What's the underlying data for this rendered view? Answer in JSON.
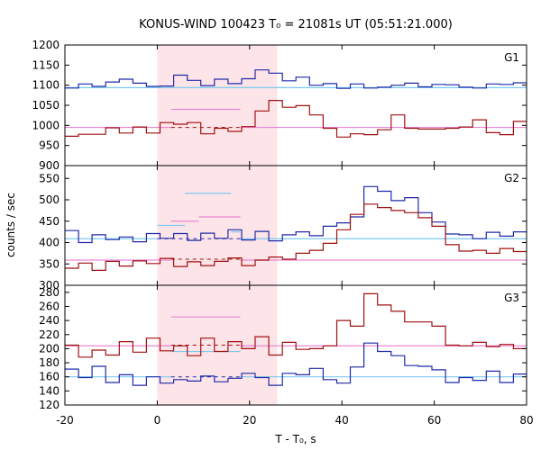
{
  "chart_data": {
    "type": "line",
    "title": "KONUS-WIND 100423 T₀ = 21081s UT (05:51:21.000)",
    "xlabel": "T - T₀, s",
    "ylabel": "counts / sec",
    "xlim": [
      -20,
      80
    ],
    "x_ticks": [
      "-20",
      "0",
      "20",
      "40",
      "60",
      "80"
    ],
    "shaded_interval": [
      0,
      26
    ],
    "colors": {
      "dark_series": "#a01010",
      "blue_series": "#1f2aa8",
      "blue_level": "#7ec8f0",
      "dark_level": "#e887d6",
      "shade": "#fde4e8"
    },
    "panels": [
      {
        "label": "G1",
        "ylim": [
          900,
          1200
        ],
        "y_ticks": [
          900,
          950,
          1000,
          1050,
          1100,
          1150,
          1200
        ],
        "bin_start": -20,
        "bin_width": 2.944,
        "series": [
          {
            "key": "blue",
            "values": [
              1093,
              1103,
              1097,
              1108,
              1115,
              1105,
              1097,
              1098,
              1125,
              1112,
              1099,
              1115,
              1104,
              1116,
              1138,
              1130,
              1111,
              1120,
              1100,
              1104,
              1092,
              1103,
              1093,
              1095,
              1100,
              1105,
              1096,
              1102,
              1101,
              1095,
              1093,
              1103,
              1102,
              1106,
              1101,
              1100,
              1102,
              1100,
              1094,
              1101,
              1095,
              1097,
              1100,
              1093,
              1101,
              1098,
              1107,
              1088,
              1116,
              1087,
              1095,
              1093,
              1122,
              1096,
              1100,
              1097,
              1094,
              1110,
              1100,
              1096,
              1097,
              1093,
              1104,
              1097,
              1101,
              1100,
              1101,
              1137,
              1100,
              1105,
              1096,
              1094,
              1093,
              1097,
              1095,
              1100,
              1111,
              1089,
              1100,
              1125,
              1101,
              1138,
              1098,
              1103,
              1097
            ]
          },
          {
            "key": "dark",
            "values": [
              973,
              978,
              978,
              994,
              981,
              996,
              981,
              1007,
              1003,
              1007,
              979,
              993,
              985,
              997,
              1036,
              1062,
              1045,
              1049,
              1026,
              993,
              971,
              979,
              977,
              989,
              1026,
              993,
              991,
              991,
              993,
              996,
              1014,
              982,
              977,
              1010,
              1016,
              983,
              983,
              994,
              997,
              1003,
              991,
              994,
              983,
              995,
              997,
              1010,
              1005,
              993,
              1008,
              1007,
              976,
              991,
              1003,
              984,
              985,
              1002,
              974,
              981,
              997,
              993,
              989,
              993,
              987,
              994,
              996,
              997,
              997,
              996,
              1001,
              993,
              999,
              983,
              983,
              979,
              973,
              996,
              1001,
              1008,
              993,
              1019,
              1000,
              986,
              999,
              993,
              991
            ]
          }
        ],
        "fit_levels": [
          {
            "key": "blue_level",
            "segments": [
              {
                "x": [
                  -20,
                  80
                ],
                "y": 1094
              }
            ]
          },
          {
            "key": "dark_level",
            "segments": [
              {
                "x": [
                  -20,
                  3
                ],
                "y": 995
              },
              {
                "x": [
                  3,
                  18
                ],
                "y": 1040
              },
              {
                "x": [
                  18,
                  80
                ],
                "y": 995
              }
            ]
          },
          {
            "key": "dark_dashed",
            "segments": [
              {
                "x": [
                  3,
                  18
                ],
                "y": 995
              }
            ]
          }
        ]
      },
      {
        "label": "G2",
        "ylim": [
          300,
          580
        ],
        "y_ticks": [
          300,
          350,
          400,
          450,
          500,
          550
        ],
        "bin_start": -20,
        "bin_width": 2.944,
        "series": [
          {
            "key": "blue",
            "values": [
              428,
              400,
              418,
              407,
              413,
              402,
              421,
              410,
              421,
              405,
              422,
              410,
              430,
              406,
              426,
              404,
              418,
              425,
              416,
              438,
              446,
              460,
              531,
              520,
              498,
              505,
              470,
              448,
              420,
              418,
              409,
              424,
              415,
              425,
              413,
              404,
              411,
              415,
              410,
              401,
              413,
              403,
              412,
              407,
              421,
              409,
              417,
              410,
              410,
              405,
              420,
              408,
              417,
              411,
              412,
              418,
              403,
              407,
              414,
              412,
              407,
              418,
              404,
              410,
              420,
              414,
              413,
              407,
              405,
              409,
              406,
              418,
              411,
              405,
              410,
              414,
              410,
              404,
              416,
              410,
              413,
              410,
              403,
              419,
              410
            ]
          },
          {
            "key": "dark",
            "values": [
              340,
              352,
              335,
              356,
              345,
              357,
              351,
              363,
              344,
              355,
              346,
              356,
              364,
              346,
              359,
              366,
              361,
              375,
              382,
              398,
              430,
              466,
              490,
              482,
              475,
              470,
              458,
              438,
              395,
              380,
              382,
              375,
              386,
              379,
              380,
              368,
              371,
              362,
              374,
              363,
              375,
              368,
              372,
              378,
              359,
              368,
              372,
              362,
              367,
              356,
              363,
              374,
              362,
              368,
              366,
              360,
              371,
              362,
              374,
              370,
              365,
              369,
              362,
              370,
              375,
              366,
              359,
              373,
              368,
              362,
              376,
              366,
              357,
              369,
              370,
              362,
              374,
              360,
              365,
              371,
              356,
              370,
              360,
              362,
              369
            ]
          }
        ],
        "fit_levels": [
          {
            "key": "blue_level",
            "segments": [
              {
                "x": [
                  -20,
                  0
                ],
                "y": 409
              },
              {
                "x": [
                  0,
                  6
                ],
                "y": 440
              },
              {
                "x": [
                  6,
                  16
                ],
                "y": 515
              },
              {
                "x": [
                  16,
                  18
                ],
                "y": 425
              },
              {
                "x": [
                  18,
                  80
                ],
                "y": 409
              }
            ]
          },
          {
            "key": "dark_level",
            "segments": [
              {
                "x": [
                  -20,
                  3
                ],
                "y": 359
              },
              {
                "x": [
                  3,
                  9
                ],
                "y": 450
              },
              {
                "x": [
                  9,
                  18
                ],
                "y": 460
              },
              {
                "x": [
                  18,
                  80
                ],
                "y": 359
              }
            ]
          },
          {
            "key": "blue_dashed",
            "segments": [
              {
                "x": [
                  0,
                  18
                ],
                "y": 409
              }
            ]
          },
          {
            "key": "dark_dashed",
            "segments": [
              {
                "x": [
                  3,
                  18
                ],
                "y": 361
              }
            ]
          }
        ]
      },
      {
        "label": "G3",
        "ylim": [
          120,
          290
        ],
        "y_ticks": [
          120,
          140,
          160,
          180,
          200,
          220,
          240,
          260,
          280
        ],
        "bin_start": -20,
        "bin_width": 2.944,
        "series": [
          {
            "key": "blue",
            "values": [
              171,
              159,
              175,
              152,
              163,
              148,
              160,
              151,
              156,
              154,
              161,
              153,
              158,
              165,
              159,
              148,
              165,
              163,
              172,
              156,
              151,
              174,
              208,
              196,
              190,
              176,
              175,
              170,
              152,
              159,
              155,
              168,
              152,
              164,
              159,
              172,
              160,
              154,
              170,
              162,
              166,
              157,
              175,
              158,
              163,
              154,
              158,
              164,
              162,
              151,
              165,
              152,
              165,
              163,
              147,
              164,
              156,
              151,
              161,
              163,
              159,
              155,
              172,
              158,
              166,
              158,
              155,
              159,
              157,
              166,
              154,
              162,
              158,
              172,
              163,
              155,
              162,
              157,
              164,
              152,
              167,
              158,
              160,
              156,
              165
            ]
          },
          {
            "key": "dark",
            "values": [
              205,
              188,
              198,
              191,
              210,
              195,
              215,
              197,
              204,
              190,
              215,
              196,
              210,
              200,
              217,
              191,
              209,
              199,
              200,
              204,
              240,
              232,
              278,
              262,
              253,
              238,
              238,
              232,
              205,
              204,
              209,
              203,
              206,
              200,
              218,
              202,
              200,
              208,
              200,
              212,
              196,
              205,
              210,
              202,
              217,
              210,
              198,
              214,
              206,
              205,
              192,
              207,
              210,
              196,
              213,
              205,
              196,
              210,
              199,
              214,
              202,
              206,
              208,
              200,
              202,
              215,
              200,
              217,
              210,
              195,
              207,
              203,
              200,
              211,
              199,
              208,
              203,
              215,
              196,
              205,
              209,
              201,
              212,
              199,
              205
            ]
          }
        ],
        "fit_levels": [
          {
            "key": "blue_level",
            "segments": [
              {
                "x": [
                  -20,
                  3
                ],
                "y": 160
              },
              {
                "x": [
                  3,
                  9
                ],
                "y": 196
              },
              {
                "x": [
                  9,
                  18
                ],
                "y": 196
              },
              {
                "x": [
                  18,
                  80
                ],
                "y": 160
              }
            ]
          },
          {
            "key": "dark_level",
            "segments": [
              {
                "x": [
                  -20,
                  3
                ],
                "y": 204
              },
              {
                "x": [
                  3,
                  18
                ],
                "y": 245
              },
              {
                "x": [
                  18,
                  80
                ],
                "y": 204
              }
            ]
          },
          {
            "key": "blue_dashed",
            "segments": [
              {
                "x": [
                  3,
                  18
                ],
                "y": 160
              }
            ]
          },
          {
            "key": "dark_dashed",
            "segments": [
              {
                "x": [
                  3,
                  18
                ],
                "y": 205
              }
            ]
          }
        ]
      }
    ]
  }
}
